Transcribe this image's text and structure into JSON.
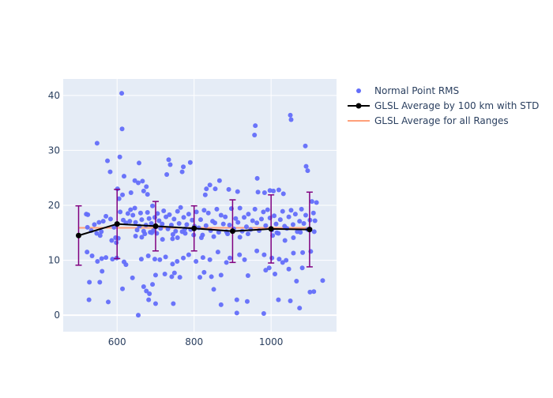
{
  "chart_data": {
    "type": "scatter",
    "xlim": [
      460,
      1170
    ],
    "ylim": [
      -3,
      43
    ],
    "x_ticks": [
      600,
      800,
      1000
    ],
    "y_ticks": [
      0,
      10,
      20,
      30,
      40
    ],
    "grid": true,
    "legend_placement": "top-right",
    "colors": {
      "plot_bg": "#E5ECF6",
      "grid": "#ffffff",
      "tick_text": "#2a3f5f",
      "points": "#636EFA",
      "avg_line": "#000000",
      "error_bars": "#800080",
      "overall_line": "#FFA07A"
    },
    "series": [
      {
        "name": "Normal Point RMS",
        "kind": "scatter",
        "points": [
          [
            612,
            40.4
          ],
          [
            613,
            33.9
          ],
          [
            575,
            28.1
          ],
          [
            548,
            31.3
          ],
          [
            607,
            28.8
          ],
          [
            582,
            26.1
          ],
          [
            657,
            27.7
          ],
          [
            734,
            28.3
          ],
          [
            738,
            27.4
          ],
          [
            772,
            27.0
          ],
          [
            769,
            26.1
          ],
          [
            729,
            25.6
          ],
          [
            790,
            27.8
          ],
          [
            866,
            24.5
          ],
          [
            855,
            23.0
          ],
          [
            841,
            23.7
          ],
          [
            829,
            21.9
          ],
          [
            832,
            23.0
          ],
          [
            618,
            25.3
          ],
          [
            655,
            24.1
          ],
          [
            666,
            24.4
          ],
          [
            669,
            22.6
          ],
          [
            676,
            23.4
          ],
          [
            679,
            22.0
          ],
          [
            601,
            23.0
          ],
          [
            605,
            21.2
          ],
          [
            614,
            21.9
          ],
          [
            636,
            22.3
          ],
          [
            646,
            24.5
          ],
          [
            959,
            34.5
          ],
          [
            957,
            32.8
          ],
          [
            1050,
            36.4
          ],
          [
            1052,
            35.6
          ],
          [
            1089,
            30.8
          ],
          [
            1091,
            27.1
          ],
          [
            1095,
            26.3
          ],
          [
            964,
            24.9
          ],
          [
            966,
            22.4
          ],
          [
            997,
            22.7
          ],
          [
            1006,
            22.6
          ],
          [
            1020,
            22.8
          ],
          [
            890,
            22.9
          ],
          [
            913,
            22.5
          ],
          [
            983,
            22.3
          ],
          [
            1032,
            22.1
          ],
          [
            520,
            18.4
          ],
          [
            524,
            18.3
          ],
          [
            523,
            16.0
          ],
          [
            533,
            15.4
          ],
          [
            541,
            16.5
          ],
          [
            547,
            14.9
          ],
          [
            556,
            14.5
          ],
          [
            559,
            15.2
          ],
          [
            553,
            16.9
          ],
          [
            564,
            17.1
          ],
          [
            571,
            18.0
          ],
          [
            583,
            17.5
          ],
          [
            592,
            16.0
          ],
          [
            596,
            14.1
          ],
          [
            586,
            13.6
          ],
          [
            598,
            13.2
          ],
          [
            603,
            14.0
          ],
          [
            608,
            18.8
          ],
          [
            616,
            17.3
          ],
          [
            623,
            16.8
          ],
          [
            628,
            18.5
          ],
          [
            633,
            17.1
          ],
          [
            635,
            19.2
          ],
          [
            641,
            18.2
          ],
          [
            646,
            19.5
          ],
          [
            648,
            16.9
          ],
          [
            652,
            15.5
          ],
          [
            658,
            16.2
          ],
          [
            661,
            18.6
          ],
          [
            664,
            17.4
          ],
          [
            669,
            15.3
          ],
          [
            672,
            14.8
          ],
          [
            675,
            16.4
          ],
          [
            679,
            18.7
          ],
          [
            683,
            17.6
          ],
          [
            686,
            15.1
          ],
          [
            689,
            16.7
          ],
          [
            692,
            19.9
          ],
          [
            694,
            15.4
          ],
          [
            698,
            17.8
          ],
          [
            701,
            16.1
          ],
          [
            705,
            18.5
          ],
          [
            709,
            17.2
          ],
          [
            713,
            15.8
          ],
          [
            717,
            16.6
          ],
          [
            721,
            19.0
          ],
          [
            727,
            17.9
          ],
          [
            732,
            15.7
          ],
          [
            736,
            18.3
          ],
          [
            741,
            16.4
          ],
          [
            745,
            14.7
          ],
          [
            748,
            17.5
          ],
          [
            752,
            15.3
          ],
          [
            757,
            18.9
          ],
          [
            761,
            16.7
          ],
          [
            765,
            19.6
          ],
          [
            769,
            15.2
          ],
          [
            773,
            17.8
          ],
          [
            777,
            14.9
          ],
          [
            781,
            16.5
          ],
          [
            786,
            18.4
          ],
          [
            791,
            15.6
          ],
          [
            795,
            17.3
          ],
          [
            801,
            16.2
          ],
          [
            806,
            18.8
          ],
          [
            812,
            15.9
          ],
          [
            817,
            17.4
          ],
          [
            822,
            14.6
          ],
          [
            826,
            19.1
          ],
          [
            831,
            16.3
          ],
          [
            837,
            18.6
          ],
          [
            843,
            15.4
          ],
          [
            848,
            17.1
          ],
          [
            854,
            16.8
          ],
          [
            859,
            19.3
          ],
          [
            864,
            15.1
          ],
          [
            870,
            18.2
          ],
          [
            876,
            16.6
          ],
          [
            881,
            17.9
          ],
          [
            887,
            14.8
          ],
          [
            892,
            16.4
          ],
          [
            897,
            19.4
          ],
          [
            903,
            15.7
          ],
          [
            908,
            17.6
          ],
          [
            914,
            16.9
          ],
          [
            919,
            19.5
          ],
          [
            925,
            15.3
          ],
          [
            930,
            17.8
          ],
          [
            936,
            16.1
          ],
          [
            941,
            18.4
          ],
          [
            947,
            15.6
          ],
          [
            952,
            17.2
          ],
          [
            958,
            19.3
          ],
          [
            963,
            16.8
          ],
          [
            969,
            15.4
          ],
          [
            975,
            17.5
          ],
          [
            980,
            18.8
          ],
          [
            986,
            16.3
          ],
          [
            991,
            19.2
          ],
          [
            997,
            17.7
          ],
          [
            1002,
            15.5
          ],
          [
            1008,
            18.1
          ],
          [
            1013,
            16.6
          ],
          [
            1019,
            14.9
          ],
          [
            1024,
            17.4
          ],
          [
            1030,
            18.9
          ],
          [
            1035,
            16.2
          ],
          [
            1041,
            15.8
          ],
          [
            1046,
            17.9
          ],
          [
            1052,
            19.1
          ],
          [
            1057,
            16.5
          ],
          [
            1063,
            18.4
          ],
          [
            1068,
            15.2
          ],
          [
            1074,
            17.1
          ],
          [
            1079,
            19.3
          ],
          [
            1085,
            16.7
          ],
          [
            1090,
            18.2
          ],
          [
            1095,
            15.6
          ],
          [
            1101,
            17.3
          ],
          [
            1106,
            20.7
          ],
          [
            1110,
            18.6
          ],
          [
            1114,
            17.2
          ],
          [
            1118,
            20.5
          ],
          [
            1112,
            15.2
          ],
          [
            648,
            14.4
          ],
          [
            664,
            14.2
          ],
          [
            690,
            15.0
          ],
          [
            703,
            14.9
          ],
          [
            718,
            13.8
          ],
          [
            744,
            13.9
          ],
          [
            757,
            14.1
          ],
          [
            776,
            15.7
          ],
          [
            799,
            14.6
          ],
          [
            819,
            14.1
          ],
          [
            851,
            14.3
          ],
          [
            884,
            15.2
          ],
          [
            919,
            14.2
          ],
          [
            940,
            14.8
          ],
          [
            1004,
            14.5
          ],
          [
            1015,
            15.0
          ],
          [
            1036,
            13.6
          ],
          [
            1058,
            14.1
          ],
          [
            1076,
            15.1
          ],
          [
            522,
            11.5
          ],
          [
            535,
            10.8
          ],
          [
            549,
            9.8
          ],
          [
            560,
            10.3
          ],
          [
            571,
            10.5
          ],
          [
            588,
            10.2
          ],
          [
            599,
            10.4
          ],
          [
            618,
            9.7
          ],
          [
            623,
            9.2
          ],
          [
            663,
            10.2
          ],
          [
            681,
            10.8
          ],
          [
            698,
            10.2
          ],
          [
            711,
            10.1
          ],
          [
            726,
            10.6
          ],
          [
            744,
            9.3
          ],
          [
            756,
            9.8
          ],
          [
            772,
            10.4
          ],
          [
            786,
            11.0
          ],
          [
            805,
            9.8
          ],
          [
            823,
            10.5
          ],
          [
            841,
            10.1
          ],
          [
            862,
            11.5
          ],
          [
            884,
            9.6
          ],
          [
            893,
            10.4
          ],
          [
            918,
            11.0
          ],
          [
            931,
            10.1
          ],
          [
            963,
            11.7
          ],
          [
            982,
            11.0
          ],
          [
            1002,
            10.4
          ],
          [
            1021,
            10.2
          ],
          [
            1039,
            10.0
          ],
          [
            1058,
            11.3
          ],
          [
            1082,
            11.4
          ],
          [
            1103,
            11.6
          ],
          [
            528,
            6.0
          ],
          [
            555,
            6.0
          ],
          [
            561,
            8.0
          ],
          [
            640,
            6.8
          ],
          [
            669,
            5.2
          ],
          [
            676,
            4.4
          ],
          [
            684,
            3.9
          ],
          [
            692,
            5.6
          ],
          [
            700,
            7.3
          ],
          [
            724,
            7.5
          ],
          [
            742,
            7.0
          ],
          [
            749,
            7.7
          ],
          [
            763,
            6.9
          ],
          [
            815,
            6.9
          ],
          [
            826,
            7.8
          ],
          [
            845,
            7.0
          ],
          [
            870,
            7.3
          ],
          [
            940,
            7.2
          ],
          [
            986,
            8.2
          ],
          [
            995,
            8.6
          ],
          [
            1010,
            7.5
          ],
          [
            1030,
            9.6
          ],
          [
            1046,
            8.4
          ],
          [
            1066,
            6.2
          ],
          [
            1081,
            8.6
          ],
          [
            1101,
            4.2
          ],
          [
            1134,
            6.3
          ],
          [
            527,
            2.8
          ],
          [
            577,
            2.4
          ],
          [
            614,
            4.8
          ],
          [
            682,
            2.8
          ],
          [
            700,
            2.1
          ],
          [
            746,
            2.1
          ],
          [
            851,
            4.7
          ],
          [
            870,
            1.9
          ],
          [
            911,
            2.8
          ],
          [
            938,
            2.5
          ],
          [
            1019,
            2.8
          ],
          [
            1050,
            2.6
          ],
          [
            1074,
            1.3
          ],
          [
            1111,
            4.3
          ],
          [
            911,
            0.4
          ],
          [
            981,
            0.3
          ],
          [
            655,
            0.0
          ]
        ]
      },
      {
        "name": "GLSL Average by 100 km with STD",
        "kind": "line_error",
        "x": [
          500,
          600,
          700,
          800,
          900,
          1000,
          1100
        ],
        "y": [
          14.5,
          16.6,
          16.2,
          15.8,
          15.3,
          15.7,
          15.6
        ],
        "err": [
          5.4,
          6.3,
          4.5,
          4.1,
          5.7,
          6.2,
          6.8
        ]
      },
      {
        "name": "GLSL Average for all Ranges",
        "kind": "line",
        "x": [
          500,
          1100
        ],
        "y": [
          15.9,
          15.9
        ]
      }
    ]
  }
}
